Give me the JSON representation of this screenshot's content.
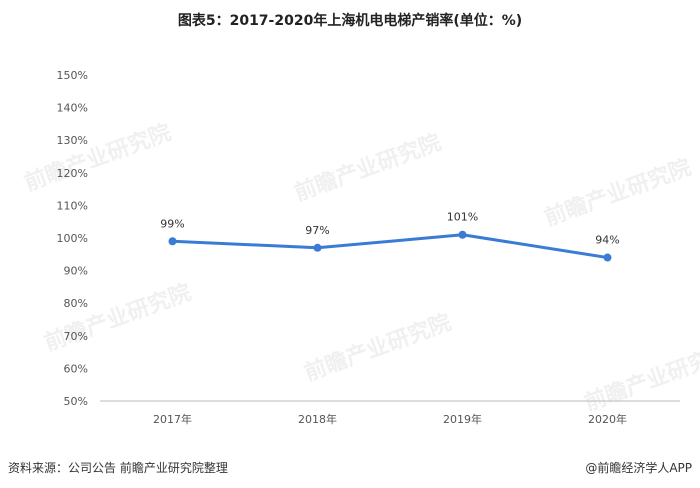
{
  "title": "图表5：2017-2020年上海机电电梯产销率(单位：%)",
  "footer": {
    "source": "资料来源：公司公告 前瞻产业研究院整理",
    "brand": "@前瞻经济学人APP"
  },
  "watermark": "前瞻产业研究院",
  "colors": {
    "line": "#3a7bd5",
    "axis": "#bbbbbb"
  },
  "chart_data": {
    "type": "line",
    "categories": [
      "2017年",
      "2018年",
      "2019年",
      "2020年"
    ],
    "series": [
      {
        "values": [
          99,
          97,
          101,
          94
        ],
        "labels": [
          "99%",
          "97%",
          "101%",
          "94%"
        ]
      }
    ],
    "ylim": [
      50,
      150
    ],
    "yticks": [
      50,
      60,
      70,
      80,
      90,
      100,
      110,
      120,
      130,
      140,
      150
    ],
    "ytick_labels": [
      "50%",
      "60%",
      "70%",
      "80%",
      "90%",
      "100%",
      "110%",
      "120%",
      "130%",
      "140%",
      "150%"
    ],
    "grid": false
  }
}
